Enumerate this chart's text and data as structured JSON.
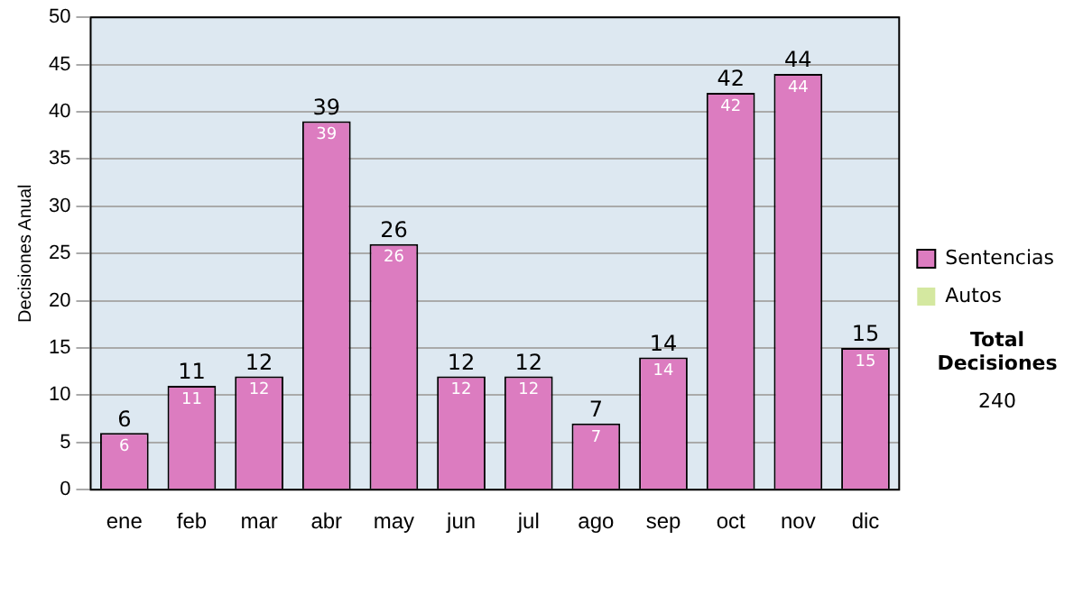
{
  "chart_data": {
    "type": "bar",
    "ylabel": "Decisiones Anual",
    "categories": [
      "ene",
      "feb",
      "mar",
      "abr",
      "may",
      "jun",
      "jul",
      "ago",
      "sep",
      "oct",
      "nov",
      "dic"
    ],
    "series": [
      {
        "name": "Sentencias",
        "color": "#dc7cc0",
        "values": [
          6,
          11,
          12,
          39,
          26,
          12,
          12,
          7,
          14,
          42,
          44,
          15
        ],
        "value_labels": [
          "6",
          "11",
          "12",
          "39",
          "26",
          "12",
          "12",
          "7",
          "14",
          "42",
          "44",
          "15"
        ]
      },
      {
        "name": "Autos",
        "color": "#d4e8a0",
        "values": [
          0,
          0,
          0,
          0,
          0,
          0,
          0,
          0,
          0,
          0,
          0,
          0
        ]
      }
    ],
    "stacked": true,
    "totals": [
      "6",
      "11",
      "12",
      "39",
      "26",
      "12",
      "12",
      "7",
      "14",
      "42",
      "44",
      "15"
    ],
    "ylim": [
      0,
      50
    ],
    "yticks": [
      0,
      5,
      10,
      15,
      20,
      25,
      30,
      35,
      40,
      45,
      50
    ],
    "grid": "y",
    "legend": "right",
    "annotations": [
      "Total Decisiones",
      "240"
    ]
  }
}
